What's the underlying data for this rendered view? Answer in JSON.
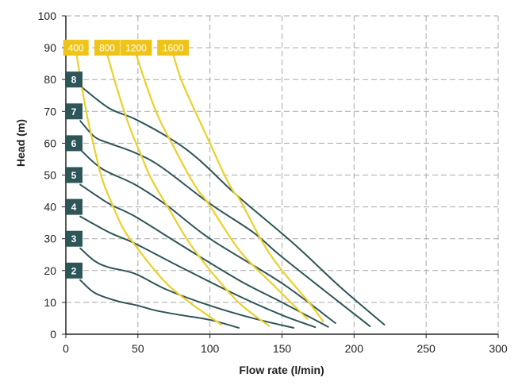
{
  "chart_data": {
    "type": "line",
    "title": "",
    "xlabel": "Flow rate (l/min)",
    "ylabel": "Head (m)",
    "xlim": [
      0,
      300
    ],
    "ylim": [
      0,
      100
    ],
    "xticks": [
      "0",
      "50",
      "100",
      "150",
      "200",
      "250",
      "300"
    ],
    "yticks": [
      "0",
      "10",
      "20",
      "30",
      "40",
      "50",
      "60",
      "70",
      "80",
      "90",
      "100"
    ],
    "grid": true,
    "colors": {
      "pressure": "#2e5558",
      "speed": "#efc418",
      "speed_line": "#ecd02c",
      "grid": "#a9a9a9"
    },
    "speed_series": [
      {
        "name": "400",
        "points": [
          [
            7,
            89
          ],
          [
            11,
            78
          ],
          [
            15,
            68
          ],
          [
            20,
            58
          ],
          [
            25,
            49
          ],
          [
            31,
            42
          ],
          [
            40,
            33
          ],
          [
            48,
            28
          ],
          [
            60,
            21
          ],
          [
            72,
            15
          ],
          [
            90,
            8.6
          ],
          [
            108,
            3
          ]
        ]
      },
      {
        "name": "800",
        "points": [
          [
            28.6,
            88
          ],
          [
            35,
            78
          ],
          [
            40.5,
            70
          ],
          [
            46,
            63
          ],
          [
            51.5,
            57
          ],
          [
            58,
            50
          ],
          [
            64,
            45
          ],
          [
            72,
            39
          ],
          [
            86,
            28.5
          ],
          [
            103,
            18.5
          ],
          [
            121,
            9.5
          ],
          [
            141,
            2.6
          ]
        ]
      },
      {
        "name": "1200",
        "points": [
          [
            48.7,
            88
          ],
          [
            56,
            78
          ],
          [
            64,
            68.4
          ],
          [
            73.5,
            60
          ],
          [
            84,
            51
          ],
          [
            92,
            45
          ],
          [
            99,
            41
          ],
          [
            121,
            26
          ],
          [
            145,
            15
          ],
          [
            167.6,
            4.8
          ]
        ]
      },
      {
        "name": "1600",
        "points": [
          [
            74.4,
            88
          ],
          [
            80,
            80
          ],
          [
            88,
            71.7
          ],
          [
            100,
            60
          ],
          [
            109,
            51
          ],
          [
            116,
            45
          ],
          [
            121,
            42
          ],
          [
            137,
            28.5
          ],
          [
            150,
            20
          ],
          [
            168.7,
            10
          ],
          [
            178.6,
            4
          ]
        ]
      }
    ],
    "pressure_series": [
      {
        "name": "8",
        "points": [
          [
            10,
            78
          ],
          [
            30,
            71
          ],
          [
            48,
            67.6
          ],
          [
            73,
            61.3
          ],
          [
            92,
            55
          ],
          [
            119,
            43.5
          ],
          [
            158,
            28.5
          ],
          [
            190,
            15
          ],
          [
            221,
            3
          ]
        ]
      },
      {
        "name": "7",
        "points": [
          [
            10,
            67
          ],
          [
            20,
            62
          ],
          [
            30,
            60
          ],
          [
            48,
            57
          ],
          [
            66,
            52.6
          ],
          [
            100,
            41
          ],
          [
            130,
            32
          ],
          [
            148,
            25
          ],
          [
            180,
            13.5
          ],
          [
            211,
            2.5
          ]
        ]
      },
      {
        "name": "6",
        "points": [
          [
            10,
            58
          ],
          [
            25,
            52
          ],
          [
            48,
            47
          ],
          [
            70,
            40.5
          ],
          [
            100,
            30
          ],
          [
            150,
            16
          ],
          [
            187,
            3.5
          ]
        ]
      },
      {
        "name": "5",
        "points": [
          [
            10,
            47
          ],
          [
            30,
            41
          ],
          [
            48,
            37
          ],
          [
            80,
            28
          ],
          [
            120,
            17
          ],
          [
            150,
            10
          ],
          [
            182,
            2.3
          ]
        ]
      },
      {
        "name": "4",
        "points": [
          [
            10,
            37
          ],
          [
            30,
            32
          ],
          [
            48,
            28.5
          ],
          [
            80,
            21
          ],
          [
            120,
            12
          ],
          [
            150,
            6
          ],
          [
            173,
            2.2
          ]
        ]
      },
      {
        "name": "3",
        "points": [
          [
            10,
            27
          ],
          [
            20,
            23
          ],
          [
            30,
            21
          ],
          [
            48,
            19
          ],
          [
            70,
            14
          ],
          [
            100,
            9
          ],
          [
            130,
            5
          ],
          [
            158,
            2
          ]
        ]
      },
      {
        "name": "2",
        "points": [
          [
            10,
            17
          ],
          [
            20,
            13
          ],
          [
            35,
            10.5
          ],
          [
            50,
            9
          ],
          [
            62,
            7.5
          ],
          [
            80,
            6
          ],
          [
            100,
            4.5
          ],
          [
            120,
            2
          ]
        ]
      }
    ],
    "speed_label_positions": [
      [
        7,
        90
      ],
      [
        28.6,
        90
      ],
      [
        48.7,
        90
      ],
      [
        74.4,
        90
      ]
    ],
    "pressure_label_positions": [
      [
        5.5,
        80
      ],
      [
        5.5,
        70
      ],
      [
        5.5,
        60
      ],
      [
        5.5,
        50
      ],
      [
        5.5,
        40
      ],
      [
        5.5,
        30
      ],
      [
        5.5,
        20
      ]
    ]
  }
}
